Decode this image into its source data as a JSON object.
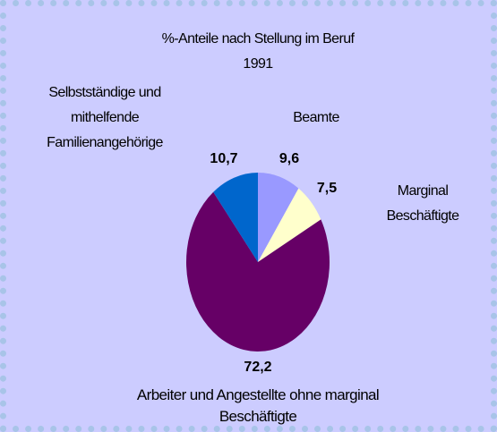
{
  "chart_data": {
    "type": "pie",
    "title": "%-Anteile nach Stellung im Beruf",
    "subtitle": "1991",
    "categories": [
      "Beamte",
      "Marginal Beschäftigte",
      "Arbeiter und Angestellte ohne marginal Beschäftigte",
      "Selbstständige und mithelfende Familienangehörige"
    ],
    "values": [
      9.6,
      7.5,
      72.2,
      10.7
    ],
    "value_labels": [
      "9,6",
      "7,5",
      "72,2",
      "10,7"
    ],
    "colors": [
      "#9999ff",
      "#ffffcc",
      "#660066",
      "#0066cc"
    ]
  }
}
